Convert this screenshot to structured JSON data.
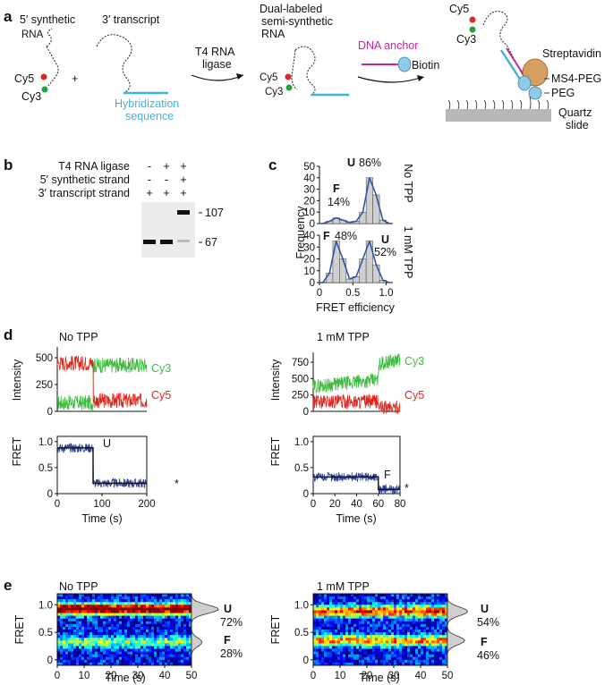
{
  "panels": {
    "a": {
      "label": "a",
      "synthetic_rna_1": "5′ synthetic",
      "synthetic_rna_2": "RNA",
      "transcript": "3′ transcript",
      "cy5": "Cy5",
      "cy3": "Cy3",
      "plus": "+",
      "hybridization_1": "Hybridization",
      "hybridization_2": "sequence",
      "ligase_1": "T4 RNA",
      "ligase_2": "ligase",
      "dual_1": "Dual-labeled",
      "dual_2": "semi-synthetic",
      "dual_3": "RNA",
      "dna_anchor": "DNA anchor",
      "biotin": "Biotin",
      "streptavidin": "Streptavidin",
      "ms4peg": "MS4-PEG",
      "peg": "PEG",
      "quartz_1": "Quartz",
      "quartz_2": "slide",
      "colors": {
        "cy5": "#e0261f",
        "cy3": "#22a33a",
        "hybrid": "#3fb4d8",
        "anchor": "#c2279b",
        "biotin": "#8ecbe8",
        "streptavidin": "#d8a060"
      }
    },
    "b": {
      "label": "b",
      "rows": [
        {
          "name": "T4 RNA ligase",
          "signs": [
            "-",
            "+",
            "+"
          ]
        },
        {
          "name": "5′ synthetic strand",
          "signs": [
            "-",
            "-",
            "+"
          ]
        },
        {
          "name": "3′ transcript strand",
          "signs": [
            "+",
            "+",
            "+"
          ]
        }
      ],
      "marker_top": "107",
      "marker_bottom": "67"
    },
    "c": {
      "label": "c",
      "ylabel": "Frequency",
      "xlabel": "FRET efficiency",
      "top": {
        "condition": "No TPP",
        "f_letter": "F",
        "f_pct": "14%",
        "u_letter": "U",
        "u_pct": "86%",
        "ylim": [
          0,
          50
        ],
        "yticks": [
          "0",
          "10",
          "20",
          "30",
          "40",
          "50"
        ]
      },
      "bottom": {
        "condition": "1 mM TPP",
        "f_letter": "F",
        "f_pct": "48%",
        "u_letter": "U",
        "u_pct": "52%",
        "ylim": [
          0,
          40
        ],
        "yticks": [
          "0",
          "10",
          "20",
          "30",
          "40"
        ]
      },
      "xticks": [
        "0",
        "0.5",
        "1.0"
      ]
    },
    "d": {
      "label": "d",
      "left": {
        "condition": "No TPP",
        "intensity_label": "Intensity",
        "fret_label": "FRET",
        "cy3": "Cy3",
        "cy5": "Cy5",
        "state": "U",
        "star": "*",
        "int_yticks": [
          "0",
          "250",
          "500"
        ],
        "fret_yticks": [
          "0",
          "0.5",
          "1.0"
        ],
        "xticks": [
          "0",
          "100",
          "200"
        ],
        "xlabel": "Time (s)"
      },
      "right": {
        "condition": "1 mM TPP",
        "intensity_label": "Intensity",
        "fret_label": "FRET",
        "cy3": "Cy3",
        "cy5": "Cy5",
        "state": "F",
        "star": "*",
        "int_yticks": [
          "0",
          "250",
          "500",
          "750"
        ],
        "fret_yticks": [
          "0",
          "0.5",
          "1.0"
        ],
        "xticks": [
          "0",
          "20",
          "40",
          "60",
          "80"
        ],
        "xlabel": "Time (s)"
      }
    },
    "e": {
      "label": "e",
      "left": {
        "condition": "No TPP",
        "ylabel": "FRET",
        "xlabel": "Time (s)",
        "u_letter": "U",
        "u_pct": "72%",
        "f_letter": "F",
        "f_pct": "28%",
        "xticks": [
          "0",
          "10",
          "20",
          "30",
          "40",
          "50"
        ],
        "yticks": [
          "0",
          "0.5",
          "1.0"
        ]
      },
      "right": {
        "condition": "1 mM TPP",
        "ylabel": "FRET",
        "xlabel": "Time (s)",
        "u_letter": "U",
        "u_pct": "54%",
        "f_letter": "F",
        "f_pct": "46%",
        "xticks": [
          "0",
          "10",
          "20",
          "30",
          "40",
          "50"
        ],
        "yticks": [
          "0",
          "0.5",
          "1.0"
        ]
      }
    }
  },
  "chart_data": [
    {
      "type": "bar",
      "panel": "c-top",
      "title": "No TPP",
      "x": [
        0.05,
        0.15,
        0.25,
        0.35,
        0.45,
        0.55,
        0.65,
        0.75,
        0.85,
        0.95
      ],
      "values": [
        0,
        2,
        5,
        3,
        1,
        2,
        10,
        40,
        25,
        3
      ],
      "xlim": [
        0,
        1.1
      ],
      "ylim": [
        0,
        50
      ],
      "ylabel": "Frequency",
      "xlabel": "FRET efficiency"
    },
    {
      "type": "bar",
      "panel": "c-bottom",
      "title": "1 mM TPP",
      "x": [
        0.05,
        0.15,
        0.25,
        0.35,
        0.45,
        0.55,
        0.65,
        0.75,
        0.85,
        0.95
      ],
      "values": [
        0,
        8,
        35,
        20,
        3,
        5,
        20,
        35,
        15,
        2
      ],
      "xlim": [
        0,
        1.1
      ],
      "ylim": [
        0,
        40
      ],
      "ylabel": "Frequency",
      "xlabel": "FRET efficiency"
    },
    {
      "type": "line",
      "panel": "d-left",
      "title": "No TPP",
      "xlabel": "Time (s)",
      "xlim": [
        0,
        200
      ],
      "series": [
        {
          "name": "Cy3",
          "x": [
            0,
            80,
            80,
            200
          ],
          "values": [
            80,
            80,
            430,
            430
          ]
        },
        {
          "name": "Cy5",
          "x": [
            0,
            80,
            80,
            200
          ],
          "values": [
            450,
            450,
            100,
            100
          ]
        },
        {
          "name": "FRET",
          "x": [
            0,
            80,
            80,
            200
          ],
          "values": [
            0.88,
            0.88,
            0.2,
            0.2
          ]
        }
      ],
      "int_ylim": [
        0,
        600
      ],
      "fret_ylim": [
        0,
        1.1
      ]
    },
    {
      "type": "line",
      "panel": "d-right",
      "title": "1 mM TPP",
      "xlabel": "Time (s)",
      "xlim": [
        0,
        80
      ],
      "series": [
        {
          "name": "Cy3",
          "x": [
            0,
            60,
            60,
            80
          ],
          "values": [
            380,
            480,
            720,
            790
          ]
        },
        {
          "name": "Cy5",
          "x": [
            0,
            60,
            60,
            80
          ],
          "values": [
            150,
            150,
            60,
            60
          ]
        },
        {
          "name": "FRET",
          "x": [
            0,
            60,
            60,
            80
          ],
          "values": [
            0.32,
            0.32,
            0.08,
            0.08
          ]
        }
      ],
      "int_ylim": [
        0,
        900
      ],
      "fret_ylim": [
        0,
        1.1
      ]
    },
    {
      "type": "heatmap",
      "panel": "e-left",
      "title": "No TPP",
      "xlim": [
        0,
        50
      ],
      "ylim": [
        -0.1,
        1.2
      ],
      "xlabel": "Time (s)",
      "ylabel": "FRET",
      "bands": [
        {
          "center": 0.92,
          "weight": 0.72
        },
        {
          "center": 0.32,
          "weight": 0.28
        }
      ]
    },
    {
      "type": "heatmap",
      "panel": "e-right",
      "title": "1 mM TPP",
      "xlim": [
        0,
        50
      ],
      "ylim": [
        -0.1,
        1.2
      ],
      "xlabel": "Time (s)",
      "ylabel": "FRET",
      "bands": [
        {
          "center": 0.88,
          "weight": 0.54
        },
        {
          "center": 0.35,
          "weight": 0.46
        }
      ]
    }
  ]
}
